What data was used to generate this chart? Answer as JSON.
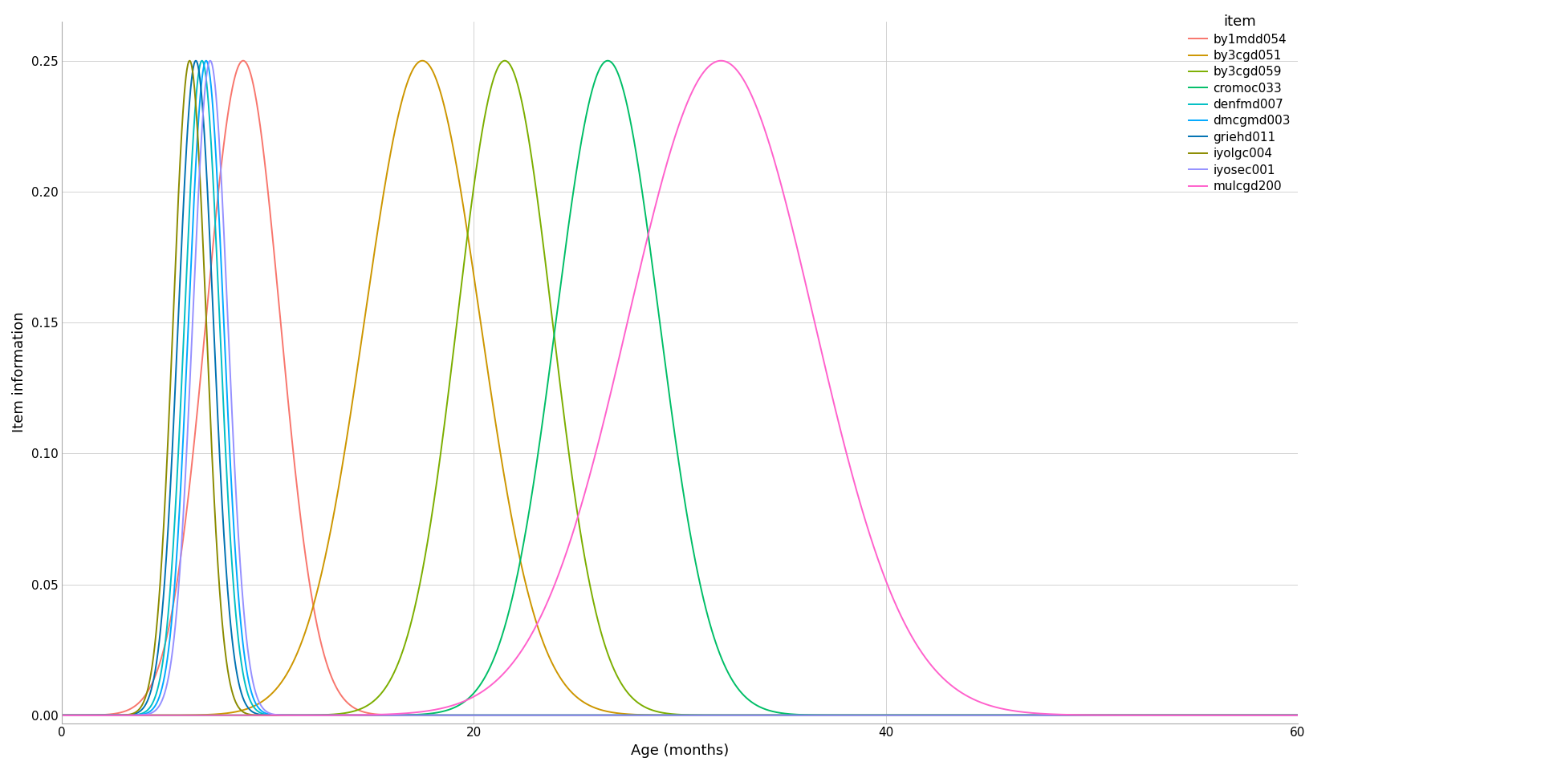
{
  "title": "",
  "xlabel": "Age (months)",
  "ylabel": "Item information",
  "xlim": [
    0,
    60
  ],
  "ylim": [
    -0.003,
    0.265
  ],
  "xticks": [
    0,
    20,
    40,
    60
  ],
  "yticks": [
    0.0,
    0.05,
    0.1,
    0.15,
    0.2,
    0.25
  ],
  "legend_title": "item",
  "items": [
    {
      "name": "by1mdd054",
      "color": "#F8766D",
      "peak": 8.8,
      "sigma": 1.8
    },
    {
      "name": "by3cgd051",
      "color": "#CD9600",
      "peak": 17.5,
      "sigma": 2.8
    },
    {
      "name": "by3cgd059",
      "color": "#7CAE00",
      "peak": 21.5,
      "sigma": 2.3
    },
    {
      "name": "cromoc033",
      "color": "#00BE67",
      "peak": 26.5,
      "sigma": 2.5
    },
    {
      "name": "denfmd007",
      "color": "#00BFC4",
      "peak": 6.8,
      "sigma": 0.85
    },
    {
      "name": "dmcgmd003",
      "color": "#00A9FF",
      "peak": 7.0,
      "sigma": 0.85
    },
    {
      "name": "griehd011",
      "color": "#0072B2",
      "peak": 6.5,
      "sigma": 0.85
    },
    {
      "name": "iyolgc004",
      "color": "#8B8B00",
      "peak": 6.2,
      "sigma": 0.8
    },
    {
      "name": "iyosec001",
      "color": "#9590FF",
      "peak": 7.2,
      "sigma": 0.85
    },
    {
      "name": "mulcgd200",
      "color": "#FF61CC",
      "peak": 32.0,
      "sigma": 4.5
    }
  ],
  "background_color": "#FFFFFF",
  "grid_color": "#CCCCCC",
  "line_width": 1.4
}
